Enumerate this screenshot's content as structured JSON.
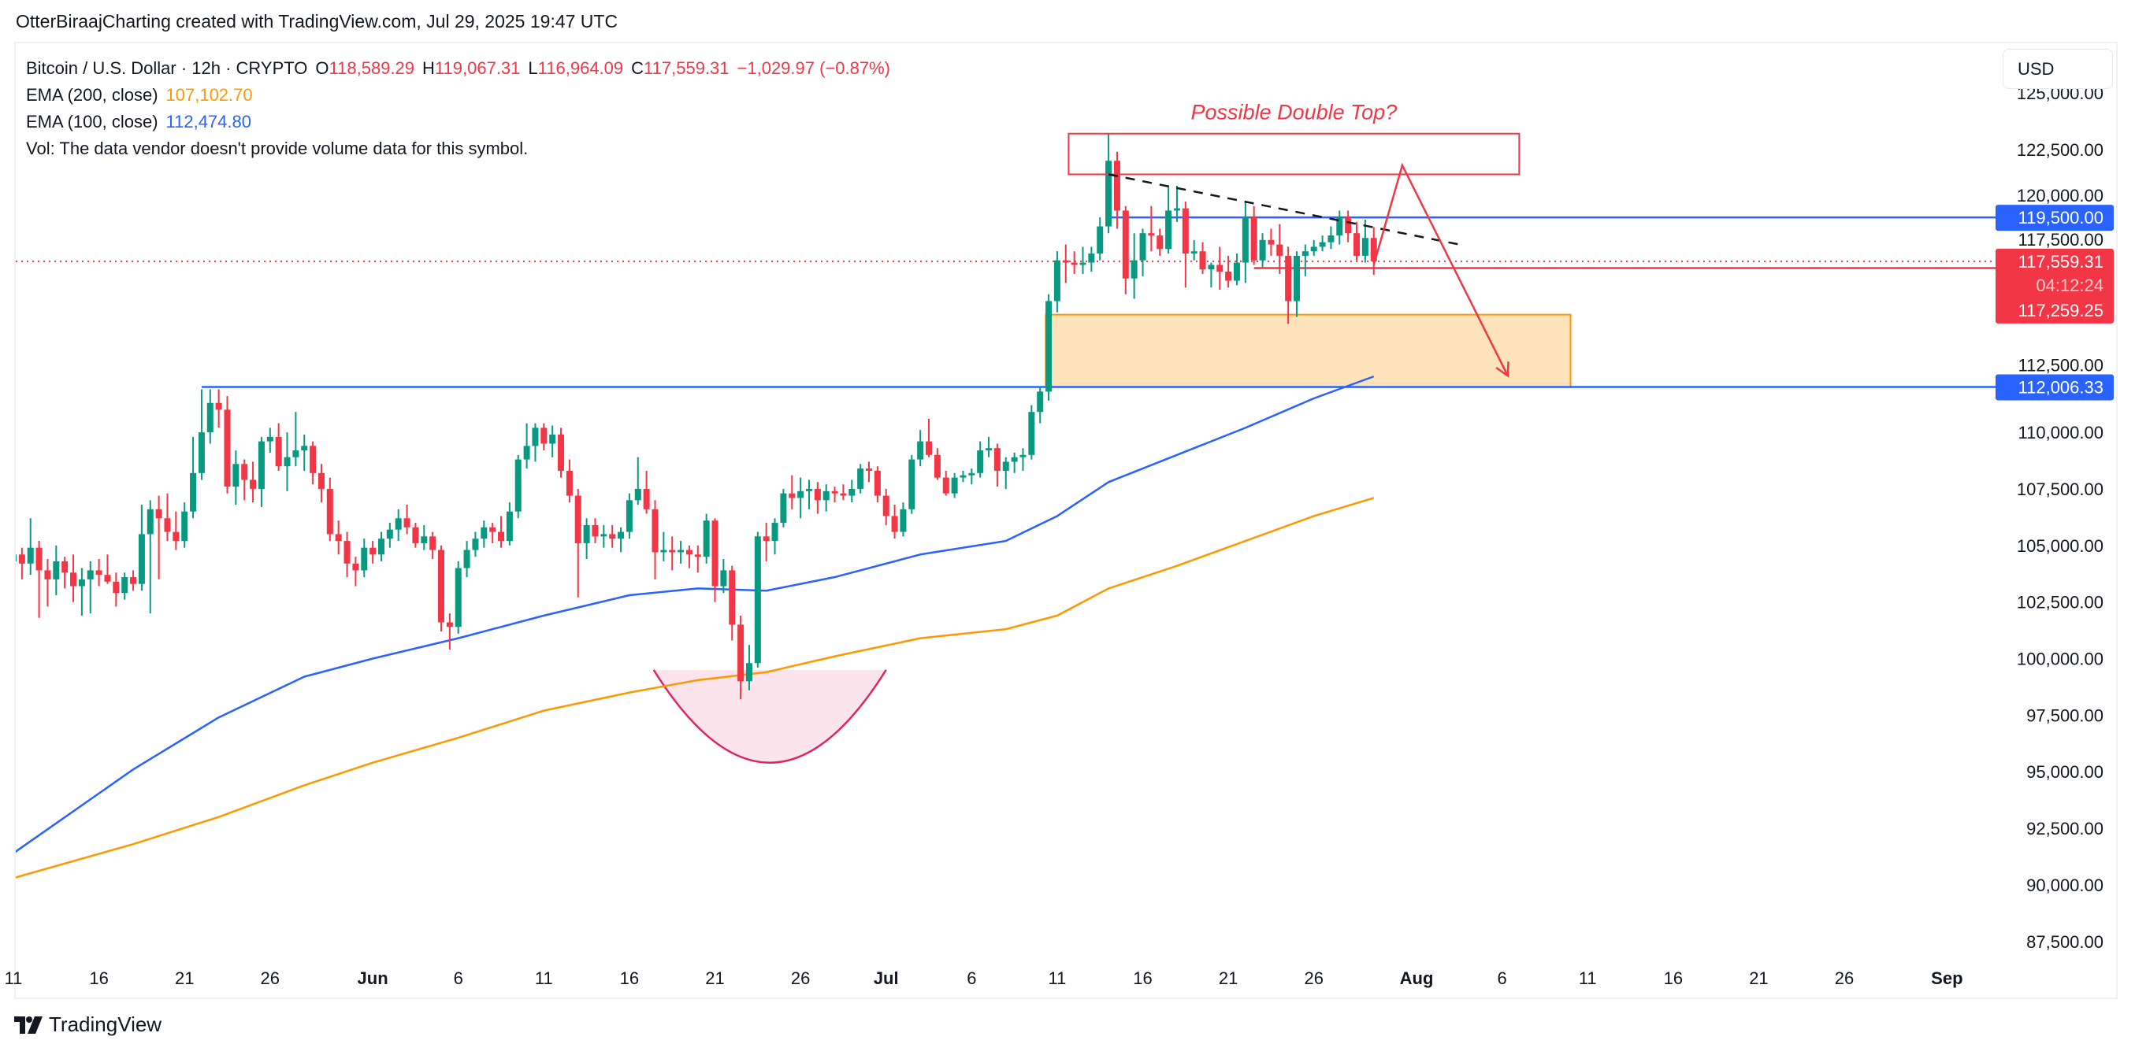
{
  "credit": "OtterBiraajCharting created with TradingView.com, Jul 29, 2025 19:47 UTC",
  "legend": {
    "symbol": "Bitcoin / U.S. Dollar · 12h · CRYPTO",
    "o_label": "O",
    "o": "118,589.29",
    "h_label": "H",
    "h": "119,067.31",
    "l_label": "L",
    "l": "116,964.09",
    "c_label": "C",
    "c": "117,559.31",
    "change": "−1,029.97 (−0.87%)",
    "ema200_label": "EMA (200, close)",
    "ema200": "107,102.70",
    "ema100_label": "EMA (100, close)",
    "ema100": "112,474.80",
    "vol": "Vol: The data vendor doesn't provide volume data for this symbol."
  },
  "currency_button": "USD",
  "brand": "TradingView",
  "colors": {
    "up": "#089981",
    "down": "#f23645",
    "ema100": "#2962ff",
    "ema200": "#ff9800",
    "zone_fill": "#ffe3ba",
    "zone_stroke": "#ff9800",
    "bowl_fill": "#fce4ec",
    "bowl_stroke": "#e0245e"
  },
  "chart_data": {
    "type": "candlestick",
    "interval": "12h",
    "start": "2025-05-11",
    "ylim": [
      86000,
      126500
    ],
    "y_ticks": [
      "125,000.00",
      "122,500.00",
      "120,000.00",
      "117,500.00",
      "112,500.00",
      "110,000.00",
      "107,500.00",
      "105,000.00",
      "102,500.00",
      "100,000.00",
      "97,500.00",
      "95,000.00",
      "92,500.00",
      "90,000.00",
      "87,500.00"
    ],
    "y_tick_values": [
      125000,
      122500,
      120000,
      117500,
      112500,
      110000,
      107500,
      105000,
      102500,
      100000,
      97500,
      95000,
      92500,
      90000,
      87500
    ],
    "x_ticks": [
      {
        "label": "11",
        "date": "2025-05-11"
      },
      {
        "label": "16",
        "date": "2025-05-16"
      },
      {
        "label": "21",
        "date": "2025-05-21"
      },
      {
        "label": "26",
        "date": "2025-05-26"
      },
      {
        "label": "Jun",
        "date": "2025-06-01",
        "month": true
      },
      {
        "label": "6",
        "date": "2025-06-06"
      },
      {
        "label": "11",
        "date": "2025-06-11"
      },
      {
        "label": "16",
        "date": "2025-06-16"
      },
      {
        "label": "21",
        "date": "2025-06-21"
      },
      {
        "label": "26",
        "date": "2025-06-26"
      },
      {
        "label": "Jul",
        "date": "2025-07-01",
        "month": true
      },
      {
        "label": "6",
        "date": "2025-07-06"
      },
      {
        "label": "11",
        "date": "2025-07-11"
      },
      {
        "label": "16",
        "date": "2025-07-16"
      },
      {
        "label": "21",
        "date": "2025-07-21"
      },
      {
        "label": "26",
        "date": "2025-07-26"
      },
      {
        "label": "Aug",
        "date": "2025-08-01",
        "month": true
      },
      {
        "label": "6",
        "date": "2025-08-06"
      },
      {
        "label": "11",
        "date": "2025-08-11"
      },
      {
        "label": "16",
        "date": "2025-08-16"
      },
      {
        "label": "21",
        "date": "2025-08-21"
      },
      {
        "label": "26",
        "date": "2025-08-26"
      },
      {
        "label": "Sep",
        "date": "2025-09-01",
        "month": true
      }
    ],
    "candles_ohlc_thousands": [
      [
        104.3,
        105.0,
        102.0,
        104.6
      ],
      [
        104.6,
        104.9,
        103.5,
        104.2
      ],
      [
        104.2,
        106.2,
        103.7,
        104.9
      ],
      [
        104.9,
        105.2,
        101.8,
        103.9
      ],
      [
        103.9,
        104.4,
        102.3,
        103.5
      ],
      [
        103.5,
        105.0,
        102.8,
        104.3
      ],
      [
        104.3,
        104.5,
        103.1,
        103.8
      ],
      [
        103.8,
        104.6,
        102.5,
        103.2
      ],
      [
        103.2,
        104.0,
        101.9,
        103.5
      ],
      [
        103.5,
        104.3,
        102.0,
        103.9
      ],
      [
        103.9,
        104.4,
        103.2,
        103.7
      ],
      [
        103.7,
        104.6,
        103.3,
        103.4
      ],
      [
        103.4,
        103.8,
        102.3,
        102.9
      ],
      [
        102.9,
        103.8,
        102.6,
        103.6
      ],
      [
        103.6,
        103.9,
        103.0,
        103.3
      ],
      [
        103.3,
        106.8,
        103.0,
        105.5
      ],
      [
        105.5,
        107.0,
        102.0,
        106.6
      ],
      [
        106.6,
        107.2,
        103.5,
        106.2
      ],
      [
        106.2,
        107.3,
        105.2,
        105.6
      ],
      [
        105.6,
        106.5,
        104.8,
        105.2
      ],
      [
        105.2,
        106.9,
        104.9,
        106.5
      ],
      [
        106.5,
        109.8,
        106.2,
        108.2
      ],
      [
        108.2,
        111.9,
        107.9,
        110.0
      ],
      [
        110.0,
        111.9,
        109.5,
        111.3
      ],
      [
        111.3,
        111.9,
        110.2,
        111.0
      ],
      [
        111.0,
        111.6,
        107.3,
        107.6
      ],
      [
        107.6,
        109.2,
        106.8,
        108.6
      ],
      [
        108.6,
        108.8,
        107.0,
        107.9
      ],
      [
        107.9,
        108.7,
        106.9,
        107.5
      ],
      [
        107.5,
        109.8,
        106.7,
        109.6
      ],
      [
        109.6,
        110.2,
        109.1,
        109.8
      ],
      [
        109.8,
        110.4,
        108.3,
        108.5
      ],
      [
        108.5,
        110.0,
        107.4,
        108.9
      ],
      [
        108.9,
        110.9,
        108.5,
        109.2
      ],
      [
        109.2,
        109.9,
        108.3,
        109.4
      ],
      [
        109.4,
        109.6,
        107.7,
        108.2
      ],
      [
        108.2,
        108.6,
        106.9,
        107.5
      ],
      [
        107.5,
        108.0,
        105.2,
        105.5
      ],
      [
        105.5,
        106.1,
        104.6,
        105.2
      ],
      [
        105.2,
        105.6,
        103.6,
        104.2
      ],
      [
        104.2,
        104.5,
        103.2,
        103.9
      ],
      [
        103.9,
        105.3,
        103.6,
        104.9
      ],
      [
        104.9,
        105.2,
        104.2,
        104.6
      ],
      [
        104.6,
        105.6,
        104.3,
        105.3
      ],
      [
        105.3,
        106.0,
        104.9,
        105.7
      ],
      [
        105.7,
        106.6,
        105.2,
        106.2
      ],
      [
        106.2,
        106.8,
        105.5,
        105.8
      ],
      [
        105.8,
        106.0,
        104.9,
        105.1
      ],
      [
        105.1,
        105.9,
        104.8,
        105.4
      ],
      [
        105.4,
        105.6,
        104.4,
        104.8
      ],
      [
        104.8,
        105.0,
        101.2,
        101.6
      ],
      [
        101.6,
        102.0,
        100.4,
        101.4
      ],
      [
        101.4,
        104.3,
        101.1,
        104.0
      ],
      [
        104.0,
        105.2,
        103.6,
        104.8
      ],
      [
        104.8,
        105.6,
        104.5,
        105.3
      ],
      [
        105.3,
        106.1,
        104.9,
        105.8
      ],
      [
        105.8,
        106.0,
        105.1,
        105.6
      ],
      [
        105.6,
        106.3,
        104.9,
        105.2
      ],
      [
        105.2,
        106.9,
        105.0,
        106.5
      ],
      [
        106.5,
        109.0,
        106.2,
        108.8
      ],
      [
        108.8,
        110.4,
        108.4,
        109.4
      ],
      [
        109.4,
        110.4,
        108.7,
        110.2
      ],
      [
        110.2,
        110.4,
        109.2,
        109.5
      ],
      [
        109.5,
        110.3,
        108.9,
        109.9
      ],
      [
        109.9,
        110.2,
        108.0,
        108.3
      ],
      [
        108.3,
        108.8,
        106.9,
        107.2
      ],
      [
        107.2,
        107.5,
        102.7,
        105.1
      ],
      [
        105.1,
        106.2,
        104.4,
        105.9
      ],
      [
        105.9,
        106.2,
        105.1,
        105.4
      ],
      [
        105.4,
        105.9,
        104.9,
        105.5
      ],
      [
        105.5,
        105.9,
        104.9,
        105.3
      ],
      [
        105.3,
        105.8,
        104.7,
        105.6
      ],
      [
        105.6,
        107.3,
        105.3,
        107.0
      ],
      [
        107.0,
        108.9,
        106.8,
        107.5
      ],
      [
        107.5,
        108.3,
        106.4,
        106.6
      ],
      [
        106.6,
        107.0,
        103.5,
        104.7
      ],
      [
        104.7,
        105.6,
        104.3,
        104.8
      ],
      [
        104.8,
        105.4,
        103.9,
        104.7
      ],
      [
        104.7,
        105.2,
        104.2,
        104.8
      ],
      [
        104.8,
        105.0,
        104.0,
        104.6
      ],
      [
        104.6,
        105.0,
        103.8,
        104.5
      ],
      [
        104.5,
        106.4,
        104.2,
        106.1
      ],
      [
        106.1,
        106.2,
        102.5,
        103.2
      ],
      [
        103.2,
        104.4,
        102.9,
        103.9
      ],
      [
        103.9,
        104.1,
        100.8,
        101.5
      ],
      [
        101.5,
        101.9,
        98.2,
        99.0
      ],
      [
        99.0,
        100.6,
        98.6,
        99.8
      ],
      [
        99.8,
        105.6,
        99.6,
        105.4
      ],
      [
        105.4,
        106.0,
        104.3,
        105.2
      ],
      [
        105.2,
        106.2,
        104.6,
        106.0
      ],
      [
        106.0,
        107.5,
        105.8,
        107.3
      ],
      [
        107.3,
        108.1,
        106.6,
        107.1
      ],
      [
        107.1,
        108.0,
        106.2,
        107.4
      ],
      [
        107.4,
        107.9,
        106.6,
        107.5
      ],
      [
        107.5,
        107.8,
        106.4,
        107.0
      ],
      [
        107.0,
        107.7,
        106.5,
        107.4
      ],
      [
        107.4,
        107.6,
        106.9,
        107.3
      ],
      [
        107.3,
        107.7,
        107.0,
        107.2
      ],
      [
        107.2,
        107.9,
        106.9,
        107.5
      ],
      [
        107.5,
        108.6,
        107.3,
        108.4
      ],
      [
        108.4,
        108.7,
        107.8,
        108.3
      ],
      [
        108.3,
        108.5,
        106.9,
        107.2
      ],
      [
        107.2,
        107.5,
        105.9,
        106.3
      ],
      [
        106.3,
        106.8,
        105.3,
        105.6
      ],
      [
        105.6,
        106.9,
        105.4,
        106.6
      ],
      [
        106.6,
        109.0,
        106.4,
        108.8
      ],
      [
        108.8,
        110.1,
        108.5,
        109.6
      ],
      [
        109.6,
        110.6,
        108.9,
        109.0
      ],
      [
        109.0,
        109.3,
        107.9,
        108.0
      ],
      [
        108.0,
        108.3,
        107.2,
        107.3
      ],
      [
        107.3,
        108.2,
        107.1,
        108.0
      ],
      [
        108.0,
        108.3,
        107.8,
        108.1
      ],
      [
        108.1,
        108.4,
        107.7,
        108.2
      ],
      [
        108.2,
        109.6,
        108.0,
        109.2
      ],
      [
        109.2,
        109.8,
        108.9,
        109.3
      ],
      [
        109.3,
        109.5,
        107.6,
        108.3
      ],
      [
        108.3,
        108.9,
        107.5,
        108.7
      ],
      [
        108.7,
        109.1,
        108.2,
        108.9
      ],
      [
        108.9,
        109.3,
        108.3,
        109.0
      ],
      [
        109.0,
        111.2,
        108.8,
        110.9
      ],
      [
        110.9,
        112.0,
        110.4,
        111.8
      ],
      [
        111.8,
        116.1,
        111.4,
        115.8
      ],
      [
        115.8,
        118.0,
        115.3,
        117.6
      ],
      [
        117.6,
        118.3,
        116.6,
        117.5
      ],
      [
        117.5,
        118.0,
        117.0,
        117.4
      ],
      [
        117.4,
        118.2,
        117.0,
        117.5
      ],
      [
        117.5,
        118.2,
        117.1,
        117.9
      ],
      [
        117.9,
        119.5,
        117.6,
        119.1
      ],
      [
        119.1,
        123.2,
        118.8,
        122.0
      ],
      [
        122.0,
        122.4,
        119.0,
        119.8
      ],
      [
        119.8,
        120.0,
        116.1,
        116.8
      ],
      [
        116.8,
        118.8,
        115.9,
        117.6
      ],
      [
        117.6,
        119.0,
        116.9,
        118.8
      ],
      [
        118.8,
        120.0,
        118.0,
        118.7
      ],
      [
        118.7,
        119.0,
        117.8,
        118.1
      ],
      [
        118.1,
        120.9,
        117.9,
        119.8
      ],
      [
        119.8,
        120.9,
        119.3,
        119.9
      ],
      [
        119.9,
        120.2,
        116.4,
        117.9
      ],
      [
        117.9,
        118.5,
        117.6,
        118.0
      ],
      [
        118.0,
        118.4,
        117.0,
        117.2
      ],
      [
        117.2,
        117.5,
        116.4,
        117.4
      ],
      [
        117.4,
        118.2,
        116.3,
        117.1
      ],
      [
        117.1,
        117.8,
        116.4,
        116.7
      ],
      [
        116.7,
        117.9,
        116.5,
        117.5
      ],
      [
        117.5,
        120.2,
        116.6,
        119.5
      ],
      [
        119.5,
        120.0,
        117.4,
        117.6
      ],
      [
        117.6,
        118.8,
        117.3,
        118.5
      ],
      [
        118.5,
        119.0,
        117.8,
        118.3
      ],
      [
        118.3,
        119.2,
        117.0,
        117.8
      ],
      [
        117.8,
        118.2,
        114.8,
        115.8
      ],
      [
        115.8,
        118.0,
        115.1,
        117.8
      ],
      [
        117.8,
        118.3,
        116.9,
        118.0
      ],
      [
        118.0,
        118.5,
        117.8,
        118.2
      ],
      [
        118.2,
        118.7,
        118.0,
        118.4
      ],
      [
        118.4,
        119.1,
        118.1,
        118.7
      ],
      [
        118.7,
        119.8,
        118.3,
        119.5
      ],
      [
        119.5,
        119.8,
        118.4,
        118.8
      ],
      [
        118.8,
        119.3,
        117.6,
        117.8
      ],
      [
        117.8,
        119.4,
        117.5,
        118.59
      ],
      [
        118.59,
        119.07,
        116.96,
        117.56
      ]
    ],
    "series": [
      {
        "name": "EMA (100, close)",
        "color": "#2962ff",
        "points": [
          [
            "2025-05-11",
            91.4
          ],
          [
            "2025-05-18",
            95.1
          ],
          [
            "2025-05-23",
            97.4
          ],
          [
            "2025-05-28",
            99.2
          ],
          [
            "2025-06-01",
            100.0
          ],
          [
            "2025-06-06",
            100.9
          ],
          [
            "2025-06-11",
            101.9
          ],
          [
            "2025-06-16",
            102.8
          ],
          [
            "2025-06-20",
            103.1
          ],
          [
            "2025-06-24",
            103.0
          ],
          [
            "2025-06-28",
            103.6
          ],
          [
            "2025-07-03",
            104.6
          ],
          [
            "2025-07-08",
            105.2
          ],
          [
            "2025-07-11",
            106.3
          ],
          [
            "2025-07-14",
            107.8
          ],
          [
            "2025-07-18",
            109.0
          ],
          [
            "2025-07-22",
            110.2
          ],
          [
            "2025-07-26",
            111.5
          ],
          [
            "2025-07-29T12",
            112.47
          ]
        ]
      },
      {
        "name": "EMA (200, close)",
        "color": "#ff9800",
        "points": [
          [
            "2025-05-11",
            90.3
          ],
          [
            "2025-05-18",
            91.8
          ],
          [
            "2025-05-23",
            93.0
          ],
          [
            "2025-05-28",
            94.4
          ],
          [
            "2025-06-01",
            95.4
          ],
          [
            "2025-06-06",
            96.5
          ],
          [
            "2025-06-11",
            97.7
          ],
          [
            "2025-06-16",
            98.5
          ],
          [
            "2025-06-20",
            99.05
          ],
          [
            "2025-06-24",
            99.4
          ],
          [
            "2025-06-28",
            100.1
          ],
          [
            "2025-07-03",
            100.9
          ],
          [
            "2025-07-08",
            101.3
          ],
          [
            "2025-07-11",
            101.9
          ],
          [
            "2025-07-14",
            103.1
          ],
          [
            "2025-07-18",
            104.1
          ],
          [
            "2025-07-22",
            105.2
          ],
          [
            "2025-07-26",
            106.3
          ],
          [
            "2025-07-29T12",
            107.1
          ]
        ]
      }
    ],
    "last_price": {
      "value": "117,559.31",
      "countdown": "04:12:24",
      "price": 117559.31
    },
    "price_labels": [
      {
        "text": "119,500.00",
        "price": 119500,
        "color": "#2962ff"
      },
      {
        "text": "117,259.25",
        "price": 117259.25,
        "color": "#f23645"
      },
      {
        "text": "112,006.33",
        "price": 112006.33,
        "color": "#2962ff"
      }
    ],
    "annotations": {
      "double_top_text": "Possible Double Top?",
      "double_top_box": {
        "from": "2025-07-11T16",
        "to": "2025-08-07",
        "top": 123200,
        "bottom": 121400
      },
      "demand_zone": {
        "from": "2025-07-10T08",
        "to": "2025-08-10",
        "top": 115200,
        "bottom": 112000
      },
      "resistance_line": {
        "from": "2025-07-14",
        "price": 119500
      },
      "support_line": {
        "from": "2025-05-22",
        "price": 112006.33
      },
      "red_line": {
        "from": "2025-07-22T12",
        "price": 117259.25
      },
      "trendline": {
        "from": [
          "2025-07-14",
          121400
        ],
        "to": [
          "2025-08-03T12",
          118300
        ]
      },
      "projection": [
        [
          "2025-07-29T12",
          117400
        ],
        [
          "2025-07-31T04",
          121800
        ],
        [
          "2025-08-06T08",
          112500
        ]
      ],
      "rounded_bottom": {
        "from": "2025-06-17T10",
        "to": "2025-07-01T00",
        "rim": 99500,
        "bottom": 95400
      }
    }
  }
}
